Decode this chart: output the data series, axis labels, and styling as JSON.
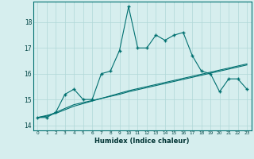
{
  "xlabel": "Humidex (Indice chaleur)",
  "xlim": [
    -0.5,
    23.5
  ],
  "ylim": [
    13.8,
    18.8
  ],
  "yticks": [
    14,
    15,
    16,
    17,
    18
  ],
  "xticks": [
    0,
    1,
    2,
    3,
    4,
    5,
    6,
    7,
    8,
    9,
    10,
    11,
    12,
    13,
    14,
    15,
    16,
    17,
    18,
    19,
    20,
    21,
    22,
    23
  ],
  "background_color": "#d6eeee",
  "grid_color": "#b0d8d8",
  "line_color": "#007070",
  "line1_x": [
    0,
    1,
    2,
    3,
    4,
    5,
    6,
    7,
    8,
    9,
    10,
    11,
    12,
    13,
    14,
    15,
    16,
    17,
    18,
    19,
    20,
    21,
    22,
    23
  ],
  "line1_y": [
    14.3,
    14.3,
    14.5,
    15.2,
    15.4,
    15.0,
    15.0,
    16.0,
    16.1,
    16.9,
    18.6,
    17.0,
    17.0,
    17.5,
    17.3,
    17.5,
    17.6,
    16.7,
    16.1,
    16.0,
    15.3,
    15.8,
    15.8,
    15.4
  ],
  "line2_x": [
    0,
    1,
    2,
    3,
    4,
    5,
    6,
    7,
    8,
    9,
    10,
    11,
    12,
    13,
    14,
    15,
    16,
    17,
    18,
    19,
    20,
    21,
    22,
    23
  ],
  "line2_y": [
    14.3,
    14.35,
    14.5,
    14.65,
    14.8,
    14.88,
    14.96,
    15.04,
    15.12,
    15.2,
    15.3,
    15.38,
    15.46,
    15.54,
    15.62,
    15.7,
    15.78,
    15.86,
    15.94,
    16.02,
    16.1,
    16.18,
    16.26,
    16.34
  ],
  "line3_x": [
    0,
    1,
    2,
    3,
    4,
    5,
    6,
    7,
    8,
    9,
    10,
    11,
    12,
    13,
    14,
    15,
    16,
    17,
    18,
    19,
    20,
    21,
    22,
    23
  ],
  "line3_y": [
    14.3,
    14.38,
    14.46,
    14.6,
    14.74,
    14.84,
    14.94,
    15.04,
    15.14,
    15.24,
    15.34,
    15.42,
    15.5,
    15.58,
    15.66,
    15.74,
    15.82,
    15.9,
    15.98,
    16.06,
    16.14,
    16.22,
    16.3,
    16.38
  ]
}
